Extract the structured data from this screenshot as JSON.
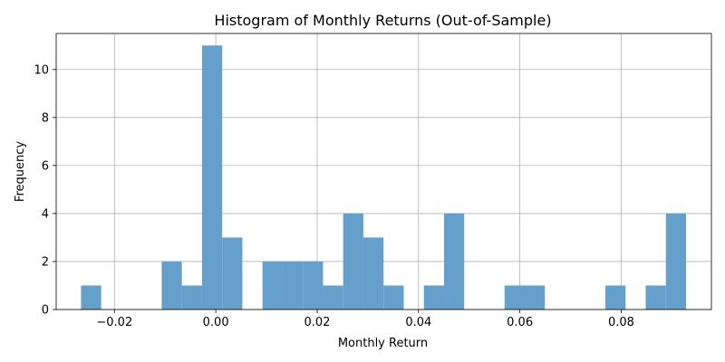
{
  "chart_data": {
    "type": "bar",
    "title": "Histogram of Monthly Returns (Out-of-Sample)",
    "xlabel": "Monthly Return",
    "ylabel": "Frequency",
    "xlim": [
      -0.0315,
      0.0978
    ],
    "ylim": [
      0,
      11.5
    ],
    "xticks": [
      -0.02,
      0.0,
      0.02,
      0.04,
      0.06,
      0.08
    ],
    "xtick_labels": [
      "−0.02",
      "0.00",
      "0.02",
      "0.04",
      "0.06",
      "0.08"
    ],
    "yticks": [
      0,
      2,
      4,
      6,
      8,
      10
    ],
    "ytick_labels": [
      "0",
      "2",
      "4",
      "6",
      "8",
      "10"
    ],
    "grid": true,
    "bar_color": "#659fcc",
    "bin_start": -0.0266,
    "bin_width": 0.00398,
    "values": [
      1,
      0,
      0,
      0,
      2,
      1,
      11,
      3,
      0,
      2,
      2,
      2,
      1,
      4,
      3,
      1,
      0,
      1,
      4,
      0,
      0,
      1,
      1,
      0,
      0,
      0,
      1,
      0,
      1,
      4
    ]
  }
}
